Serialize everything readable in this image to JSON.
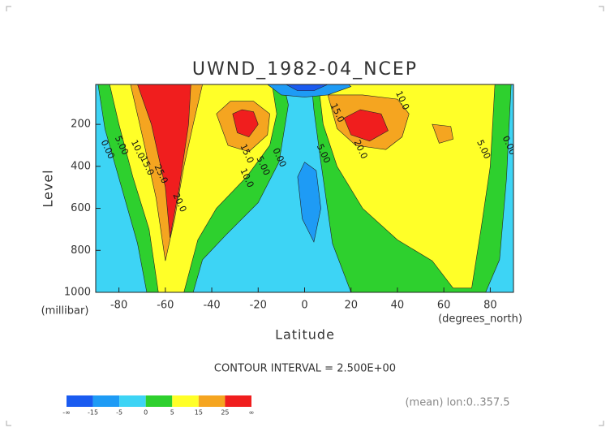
{
  "chart_data": {
    "type": "contour",
    "title": "UWND_1982-04_NCEP",
    "x_label": "Latitude",
    "x_unit": "(degrees_north)",
    "y_label": "Level",
    "y_unit": "(millibar)",
    "xlim": [
      -90,
      90
    ],
    "xticks": [
      -80,
      -60,
      -40,
      -20,
      0,
      20,
      40,
      60,
      80
    ],
    "ylim": [
      10,
      1000
    ],
    "yticks": [
      200,
      400,
      600,
      800,
      1000
    ],
    "contour_interval": "CONTOUR INTERVAL = 2.500E+00",
    "note": "(mean) lon:0..357.5",
    "colorbar": {
      "ticks": [
        "-∞",
        -15,
        -5,
        0,
        5,
        15,
        25,
        "∞"
      ],
      "colors": [
        "#1a5bf0",
        "#1e9bf5",
        "#3dd4f5",
        "#2ed02e",
        "#ffff28",
        "#f5a520",
        "#f01e1e"
      ]
    },
    "regions": [
      {
        "level": 0,
        "points": [
          [
            -89,
            10
          ],
          [
            -86,
            223
          ],
          [
            -79,
            495
          ],
          [
            -72,
            767
          ],
          [
            -68,
            1000
          ],
          [
            -48,
            1000
          ],
          [
            -44,
            845
          ],
          [
            -34,
            728
          ],
          [
            -20,
            573
          ],
          [
            -11,
            379
          ],
          [
            -7,
            107
          ],
          [
            -9,
            10
          ]
        ]
      },
      {
        "level": 5,
        "points": [
          [
            -84,
            10
          ],
          [
            -80,
            200
          ],
          [
            -74,
            450
          ],
          [
            -67,
            700
          ],
          [
            -63,
            1000
          ],
          [
            -52,
            1000
          ],
          [
            -46,
            750
          ],
          [
            -38,
            600
          ],
          [
            -25,
            450
          ],
          [
            -15,
            300
          ],
          [
            -12,
            150
          ],
          [
            -14,
            10
          ]
        ]
      },
      {
        "level": 15,
        "points": [
          [
            -75,
            10
          ],
          [
            -70,
            250
          ],
          [
            -64,
            550
          ],
          [
            -60,
            850
          ],
          [
            -56,
            650
          ],
          [
            -52,
            400
          ],
          [
            -48,
            200
          ],
          [
            -44,
            10
          ]
        ]
      },
      {
        "level": 15,
        "points": [
          [
            -38,
            150
          ],
          [
            -33,
            300
          ],
          [
            -24,
            330
          ],
          [
            -16,
            250
          ],
          [
            -15,
            150
          ],
          [
            -22,
            90
          ],
          [
            -32,
            90
          ]
        ]
      },
      {
        "level": 25,
        "points": [
          [
            -72,
            10
          ],
          [
            -66,
            200
          ],
          [
            -60,
            500
          ],
          [
            -58,
            740
          ],
          [
            -54,
            500
          ],
          [
            -50,
            200
          ],
          [
            -49,
            10
          ]
        ]
      },
      {
        "level": 25,
        "points": [
          [
            -31,
            150
          ],
          [
            -29,
            240
          ],
          [
            -24,
            260
          ],
          [
            -20,
            200
          ],
          [
            -22,
            140
          ],
          [
            -27,
            130
          ]
        ]
      },
      {
        "level": 0,
        "points": [
          [
            3,
            10
          ],
          [
            4,
            130
          ],
          [
            7,
            379
          ],
          [
            12,
            767
          ],
          [
            20,
            1000
          ],
          [
            78,
            1000
          ],
          [
            84,
            845
          ],
          [
            87,
            457
          ],
          [
            89,
            10
          ]
        ]
      },
      {
        "level": 5,
        "points": [
          [
            6,
            10
          ],
          [
            8,
            200
          ],
          [
            14,
            400
          ],
          [
            25,
            600
          ],
          [
            40,
            750
          ],
          [
            55,
            850
          ],
          [
            64,
            980
          ],
          [
            72,
            980
          ],
          [
            76,
            700
          ],
          [
            80,
            400
          ],
          [
            82,
            10
          ]
        ]
      },
      {
        "level": 15,
        "points": [
          [
            10,
            60
          ],
          [
            14,
            220
          ],
          [
            22,
            300
          ],
          [
            35,
            320
          ],
          [
            42,
            260
          ],
          [
            45,
            150
          ],
          [
            40,
            80
          ],
          [
            25,
            60
          ]
        ]
      },
      {
        "level": 15,
        "points": [
          [
            55,
            200
          ],
          [
            58,
            290
          ],
          [
            64,
            270
          ],
          [
            63,
            210
          ]
        ]
      },
      {
        "level": 25,
        "points": [
          [
            17,
            170
          ],
          [
            20,
            250
          ],
          [
            28,
            280
          ],
          [
            36,
            230
          ],
          [
            33,
            150
          ],
          [
            24,
            130
          ]
        ]
      },
      {
        "level": -15,
        "points": [
          [
            -3,
            450
          ],
          [
            -1,
            650
          ],
          [
            4,
            760
          ],
          [
            7,
            600
          ],
          [
            5,
            420
          ],
          [
            0,
            380
          ]
        ]
      },
      {
        "level": -15,
        "points": [
          [
            -16,
            10
          ],
          [
            -10,
            60
          ],
          [
            0,
            70
          ],
          [
            10,
            60
          ],
          [
            20,
            20
          ],
          [
            19,
            10
          ]
        ]
      },
      {
        "level": -20,
        "points": [
          [
            -8,
            10
          ],
          [
            -3,
            40
          ],
          [
            4,
            40
          ],
          [
            10,
            10
          ]
        ]
      }
    ],
    "contour_labels": [
      {
        "text": "0.00",
        "lat": -85,
        "p": 320
      },
      {
        "text": "5.00",
        "lat": -79,
        "p": 301
      },
      {
        "text": "10.0",
        "lat": -72,
        "p": 320
      },
      {
        "text": "15.0",
        "lat": -68,
        "p": 398
      },
      {
        "text": "25.0",
        "lat": -62,
        "p": 437
      },
      {
        "text": "20.0",
        "lat": -54,
        "p": 573
      },
      {
        "text": "15.0",
        "lat": -25,
        "p": 340
      },
      {
        "text": "10.0",
        "lat": -25,
        "p": 456
      },
      {
        "text": "5.00",
        "lat": -18,
        "p": 398
      },
      {
        "text": "0.00",
        "lat": -11,
        "p": 359
      },
      {
        "text": "10.0",
        "lat": 42,
        "p": 87
      },
      {
        "text": "15.0",
        "lat": 14,
        "p": 146
      },
      {
        "text": "20.0",
        "lat": 24,
        "p": 320
      },
      {
        "text": "5.00",
        "lat": 8,
        "p": 340
      },
      {
        "text": "5.00",
        "lat": 77,
        "p": 320
      },
      {
        "text": "0.00",
        "lat": 88,
        "p": 301
      }
    ]
  }
}
